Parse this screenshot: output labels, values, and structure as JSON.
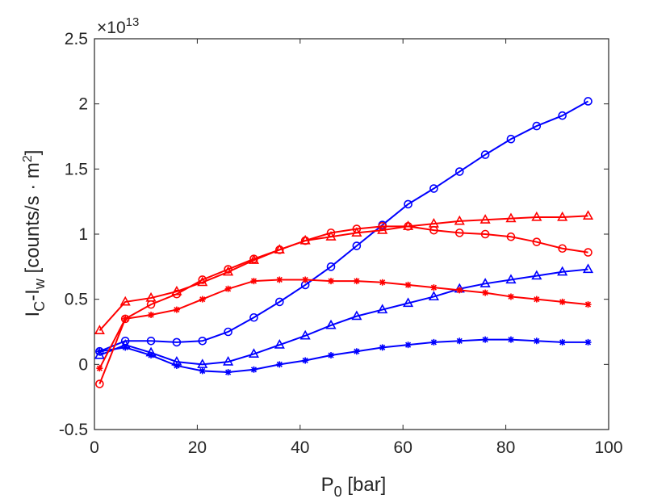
{
  "chart_data": {
    "type": "line",
    "title": "",
    "xlabel": {
      "main": "P",
      "sub": "0",
      "rest": " [bar]"
    },
    "ylabel": {
      "i1": "I",
      "s1": "C",
      "mid": "-I",
      "s2": "w",
      "rest": " [counts/s · m",
      "sup": "2",
      "end": "]"
    },
    "y_exponent": {
      "times": "×10",
      "power": "13"
    },
    "xlim": [
      0,
      100
    ],
    "ylim": [
      -0.5,
      2.5
    ],
    "x_ticks": [
      0,
      20,
      40,
      60,
      80,
      100
    ],
    "x_tick_labels": [
      "0",
      "20",
      "40",
      "60",
      "80",
      "100"
    ],
    "y_ticks": [
      -0.5,
      0,
      0.5,
      1,
      1.5,
      2,
      2.5
    ],
    "y_tick_labels": [
      "-0.5",
      "0",
      "0.5",
      "1",
      "1.5",
      "2",
      "2.5"
    ],
    "grid": false,
    "x": [
      1,
      6,
      11,
      16,
      21,
      26,
      31,
      36,
      41,
      46,
      51,
      56,
      61,
      66,
      71,
      76,
      81,
      86,
      91,
      96
    ],
    "series": [
      {
        "name": "blue-circle",
        "color": "#0000ff",
        "marker": "circle",
        "values": [
          0.1,
          0.18,
          0.18,
          0.17,
          0.18,
          0.25,
          0.36,
          0.48,
          0.61,
          0.75,
          0.91,
          1.07,
          1.23,
          1.35,
          1.48,
          1.61,
          1.73,
          1.83,
          1.91,
          2.02
        ]
      },
      {
        "name": "blue-triangle",
        "color": "#0000ff",
        "marker": "triangle",
        "values": [
          0.07,
          0.15,
          0.09,
          0.02,
          0.0,
          0.02,
          0.08,
          0.15,
          0.22,
          0.3,
          0.37,
          0.42,
          0.47,
          0.52,
          0.58,
          0.62,
          0.65,
          0.68,
          0.71,
          0.73
        ]
      },
      {
        "name": "blue-star",
        "color": "#0000ff",
        "marker": "star",
        "values": [
          0.1,
          0.13,
          0.07,
          -0.01,
          -0.05,
          -0.06,
          -0.04,
          0.0,
          0.03,
          0.07,
          0.1,
          0.13,
          0.15,
          0.17,
          0.18,
          0.19,
          0.19,
          0.18,
          0.17,
          0.17
        ]
      },
      {
        "name": "red-circle",
        "color": "#ff0000",
        "marker": "circle",
        "values": [
          -0.15,
          0.35,
          0.46,
          0.54,
          0.65,
          0.73,
          0.81,
          0.88,
          0.95,
          1.01,
          1.04,
          1.06,
          1.06,
          1.03,
          1.01,
          1.0,
          0.98,
          0.94,
          0.89,
          0.86
        ]
      },
      {
        "name": "red-triangle",
        "color": "#ff0000",
        "marker": "triangle",
        "values": [
          0.26,
          0.48,
          0.51,
          0.56,
          0.63,
          0.71,
          0.8,
          0.88,
          0.95,
          0.98,
          1.01,
          1.03,
          1.06,
          1.08,
          1.1,
          1.11,
          1.12,
          1.13,
          1.13,
          1.14
        ]
      },
      {
        "name": "red-star",
        "color": "#ff0000",
        "marker": "star",
        "values": [
          -0.03,
          0.35,
          0.38,
          0.42,
          0.5,
          0.58,
          0.64,
          0.65,
          0.65,
          0.64,
          0.64,
          0.63,
          0.61,
          0.59,
          0.57,
          0.55,
          0.52,
          0.5,
          0.48,
          0.46
        ]
      }
    ]
  }
}
